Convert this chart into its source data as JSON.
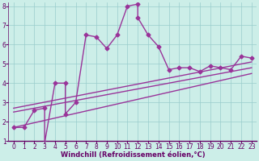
{
  "background_color": "#cceee8",
  "line_color": "#993399",
  "grid_color": "#99cccc",
  "xlabel": "Windchill (Refroidissement éolien,°C)",
  "xlim": [
    -0.5,
    23.5
  ],
  "ylim": [
    1,
    8.2
  ],
  "xticks": [
    0,
    1,
    2,
    3,
    4,
    5,
    6,
    7,
    8,
    9,
    10,
    11,
    12,
    13,
    14,
    15,
    16,
    17,
    18,
    19,
    20,
    21,
    22,
    23
  ],
  "yticks": [
    1,
    2,
    3,
    4,
    5,
    6,
    7,
    8
  ],
  "line1_x": [
    0,
    1,
    2,
    3,
    3,
    4,
    5,
    5,
    6,
    7,
    8,
    9,
    10,
    11,
    12,
    12,
    13,
    14,
    15,
    16,
    17,
    18,
    19,
    20,
    21,
    22,
    23
  ],
  "line1_y": [
    1.7,
    1.7,
    2.6,
    2.7,
    0.9,
    4.0,
    4.0,
    2.4,
    3.0,
    6.5,
    6.4,
    5.8,
    6.5,
    8.0,
    8.1,
    7.4,
    6.5,
    5.9,
    4.7,
    4.8,
    4.8,
    4.6,
    4.9,
    4.8,
    4.7,
    5.4,
    5.3
  ],
  "line2_x": [
    0,
    23
  ],
  "line2_y": [
    1.7,
    4.5
  ],
  "line3_x": [
    0,
    23
  ],
  "line3_y": [
    2.5,
    4.8
  ],
  "line4_x": [
    0,
    23
  ],
  "line4_y": [
    2.7,
    5.1
  ],
  "marker": "D",
  "markersize": 2.5,
  "linewidth": 1.0,
  "tick_fontsize": 5.5,
  "xlabel_fontsize": 6.0
}
